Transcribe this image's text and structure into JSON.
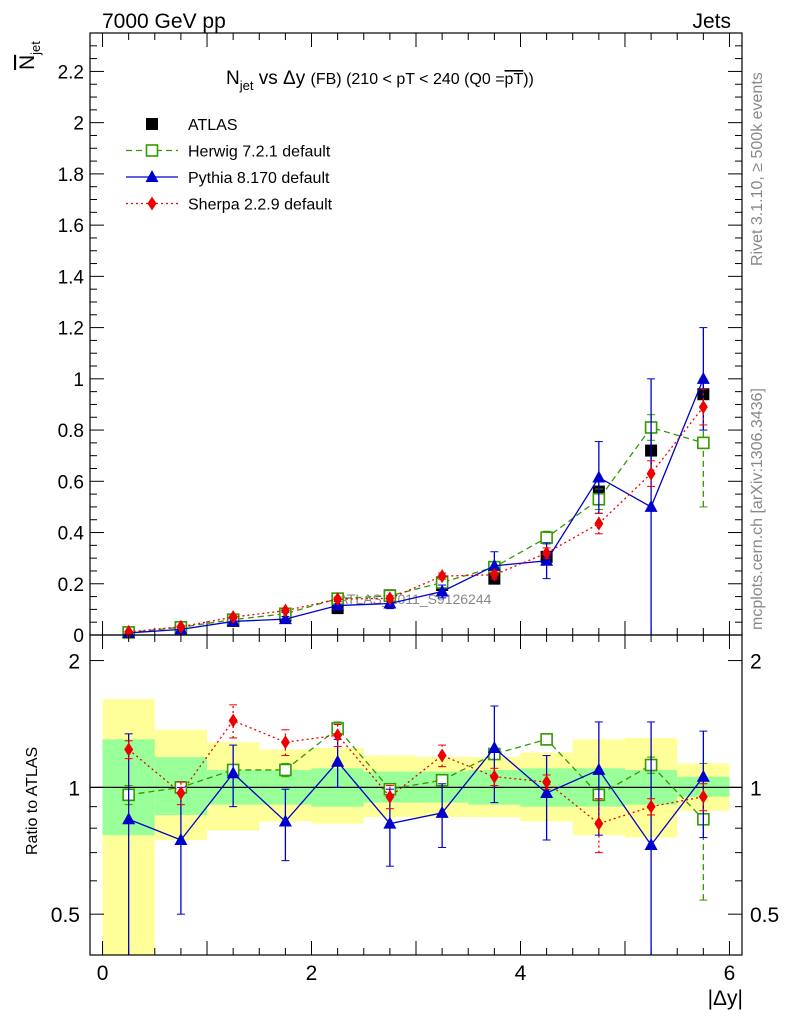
{
  "header": {
    "energy": "7000 GeV pp",
    "category": "Jets"
  },
  "side": {
    "rivet": "Rivet 3.1.10, ≥ 500k events",
    "mcplots": "mcplots.cern.ch [arXiv:1306.3436]"
  },
  "watermark": "ATLAS_2011_S9126244",
  "chart_data": {
    "type": "scatter",
    "title": "N_jet vs Δy (FB) (210 < pT < 240 (Q0 = pT))",
    "title_parts": {
      "main": "N",
      "sub": "jet",
      "vs": "vs",
      "dy": "Δy",
      "rest": "(FB) (210 < pT < 240 (Q0 =",
      "bar": "pT",
      "close": "))"
    },
    "ylabel": {
      "main": "N",
      "sub": "jet"
    },
    "xlabel": "|Δy|",
    "ratio_ylabel": "Ratio to ATLAS",
    "xlim": [
      -0.12,
      6.12
    ],
    "ylim": [
      0,
      2.35
    ],
    "ratio_ylim": [
      0.4,
      2.3
    ],
    "x_ticks": [
      0,
      2,
      4,
      6
    ],
    "y_ticks": [
      0,
      0.2,
      0.4,
      0.6,
      0.8,
      1,
      1.2,
      1.4,
      1.6,
      1.8,
      2,
      2.2
    ],
    "ratio_ticks": [
      0.5,
      1,
      2
    ],
    "x": [
      0.25,
      0.75,
      1.25,
      1.75,
      2.25,
      2.75,
      3.25,
      3.75,
      4.25,
      4.75,
      5.25,
      5.75
    ],
    "series": [
      {
        "name": "ATLAS",
        "color": "#000000",
        "marker": "filled-square",
        "values": [
          0.01,
          0.03,
          0.055,
          0.075,
          0.105,
          0.155,
          0.195,
          0.22,
          0.305,
          0.56,
          0.72,
          0.94
        ],
        "errors": [
          0.003,
          0.005,
          0.006,
          0.008,
          0.01,
          0.012,
          0.015,
          0.02,
          0.03,
          0.05,
          0.1,
          0.05
        ]
      },
      {
        "name": "Herwig 7.2.1 default",
        "color": "#339900",
        "marker": "open-square",
        "line": "dashed",
        "values": [
          0.01,
          0.03,
          0.06,
          0.083,
          0.142,
          0.153,
          0.205,
          0.265,
          0.38,
          0.53,
          0.81,
          0.75
        ],
        "errors": [
          0.002,
          0.003,
          0.005,
          0.008,
          0.01,
          0.012,
          0.015,
          0.02,
          0.025,
          0.04,
          0.05,
          0.25
        ]
      },
      {
        "name": "Pythia 8.170 default",
        "color": "#0000cc",
        "marker": "filled-triangle",
        "line": "solid",
        "values": [
          0.008,
          0.022,
          0.053,
          0.062,
          0.115,
          0.123,
          0.17,
          0.27,
          0.29,
          0.615,
          0.5,
          1.0
        ],
        "errors": [
          0.003,
          0.005,
          0.01,
          0.01,
          0.015,
          0.02,
          0.025,
          0.055,
          0.07,
          0.14,
          0.5,
          0.2
        ]
      },
      {
        "name": "Sherpa 2.2.9 default",
        "color": "#ee0000",
        "marker": "filled-diamond",
        "line": "dotted",
        "values": [
          0.012,
          0.032,
          0.07,
          0.095,
          0.14,
          0.143,
          0.23,
          0.235,
          0.32,
          0.435,
          0.63,
          0.89
        ],
        "errors": [
          0.002,
          0.003,
          0.005,
          0.007,
          0.008,
          0.01,
          0.012,
          0.015,
          0.02,
          0.04,
          0.05,
          0.07
        ]
      }
    ],
    "ratio": {
      "band_inner": [
        [
          0.77,
          1.3
        ],
        [
          0.86,
          1.18
        ],
        [
          0.91,
          1.1
        ],
        [
          0.91,
          1.1
        ],
        [
          0.9,
          1.11
        ],
        [
          0.92,
          1.09
        ],
        [
          0.92,
          1.09
        ],
        [
          0.91,
          1.1
        ],
        [
          0.9,
          1.11
        ],
        [
          0.9,
          1.11
        ],
        [
          0.91,
          1.1
        ],
        [
          0.95,
          1.06
        ]
      ],
      "band_outer": [
        [
          0.4,
          1.62
        ],
        [
          0.75,
          1.37
        ],
        [
          0.79,
          1.28
        ],
        [
          0.83,
          1.23
        ],
        [
          0.82,
          1.24
        ],
        [
          0.85,
          1.19
        ],
        [
          0.85,
          1.18
        ],
        [
          0.85,
          1.18
        ],
        [
          0.83,
          1.21
        ],
        [
          0.77,
          1.3
        ],
        [
          0.76,
          1.31
        ],
        [
          0.88,
          1.14
        ]
      ],
      "series": [
        {
          "name": "Herwig 7.2.1 default",
          "values": [
            0.96,
            1.0,
            1.1,
            1.1,
            1.38,
            0.99,
            1.04,
            1.2,
            1.3,
            0.96,
            1.13,
            0.84
          ],
          "errors": [
            0.05,
            0.03,
            0.03,
            0.04,
            0.05,
            0.03,
            0.03,
            0.03,
            0.04,
            0.03,
            0.05,
            0.3
          ]
        },
        {
          "name": "Pythia 8.170 default",
          "values": [
            0.84,
            0.75,
            1.08,
            0.83,
            1.15,
            0.82,
            0.87,
            1.24,
            0.97,
            1.1,
            0.73,
            1.06
          ],
          "errors": [
            0.5,
            0.25,
            0.18,
            0.16,
            0.15,
            0.17,
            0.15,
            0.32,
            0.22,
            0.33,
            0.7,
            0.3
          ]
        },
        {
          "name": "Sherpa 2.2.9 default",
          "values": [
            1.23,
            0.97,
            1.44,
            1.28,
            1.33,
            0.95,
            1.19,
            1.06,
            1.03,
            0.82,
            0.9,
            0.95
          ],
          "errors": [
            0.06,
            0.06,
            0.13,
            0.09,
            0.08,
            0.06,
            0.07,
            0.05,
            0.04,
            0.12,
            0.04,
            0.07
          ]
        }
      ]
    }
  }
}
